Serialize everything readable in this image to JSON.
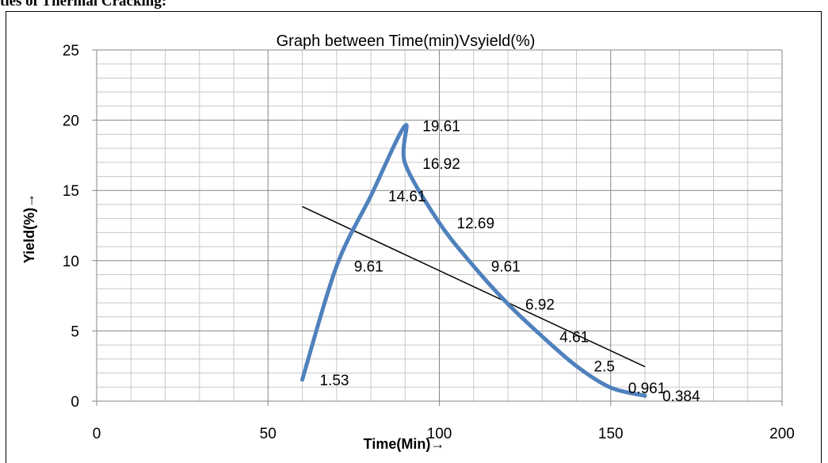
{
  "heading": "ties of Thermal Cracking:",
  "chart_data": {
    "type": "line",
    "title": "Graph between Time(min)Vsyield(%)",
    "xlabel": "Time(Min)→",
    "ylabel": "Yield(%)→",
    "xlim": [
      0,
      200
    ],
    "ylim": [
      0,
      25
    ],
    "x_ticks": [
      0,
      50,
      100,
      150,
      200
    ],
    "y_ticks": [
      0,
      5,
      10,
      15,
      20,
      25
    ],
    "grid": true,
    "series": [
      {
        "x": [
          60,
          70,
          80,
          90,
          90,
          100,
          110,
          120,
          130,
          140,
          150,
          160
        ],
        "y": [
          1.53,
          9.61,
          14.61,
          19.61,
          16.92,
          12.69,
          9.61,
          6.92,
          4.61,
          2.5,
          0.961,
          0.384
        ],
        "labels": [
          "1.53",
          "9.61",
          "14.61",
          "19.61",
          "16.92",
          "12.69",
          "9.61",
          "6.92",
          "4.61",
          "2.5",
          "0.961",
          "0.384"
        ],
        "color": "#4f81bd"
      }
    ],
    "trendline": {
      "type": "linear",
      "x": [
        60,
        160
      ],
      "y": [
        13.85,
        2.45
      ],
      "color": "#000000"
    }
  }
}
